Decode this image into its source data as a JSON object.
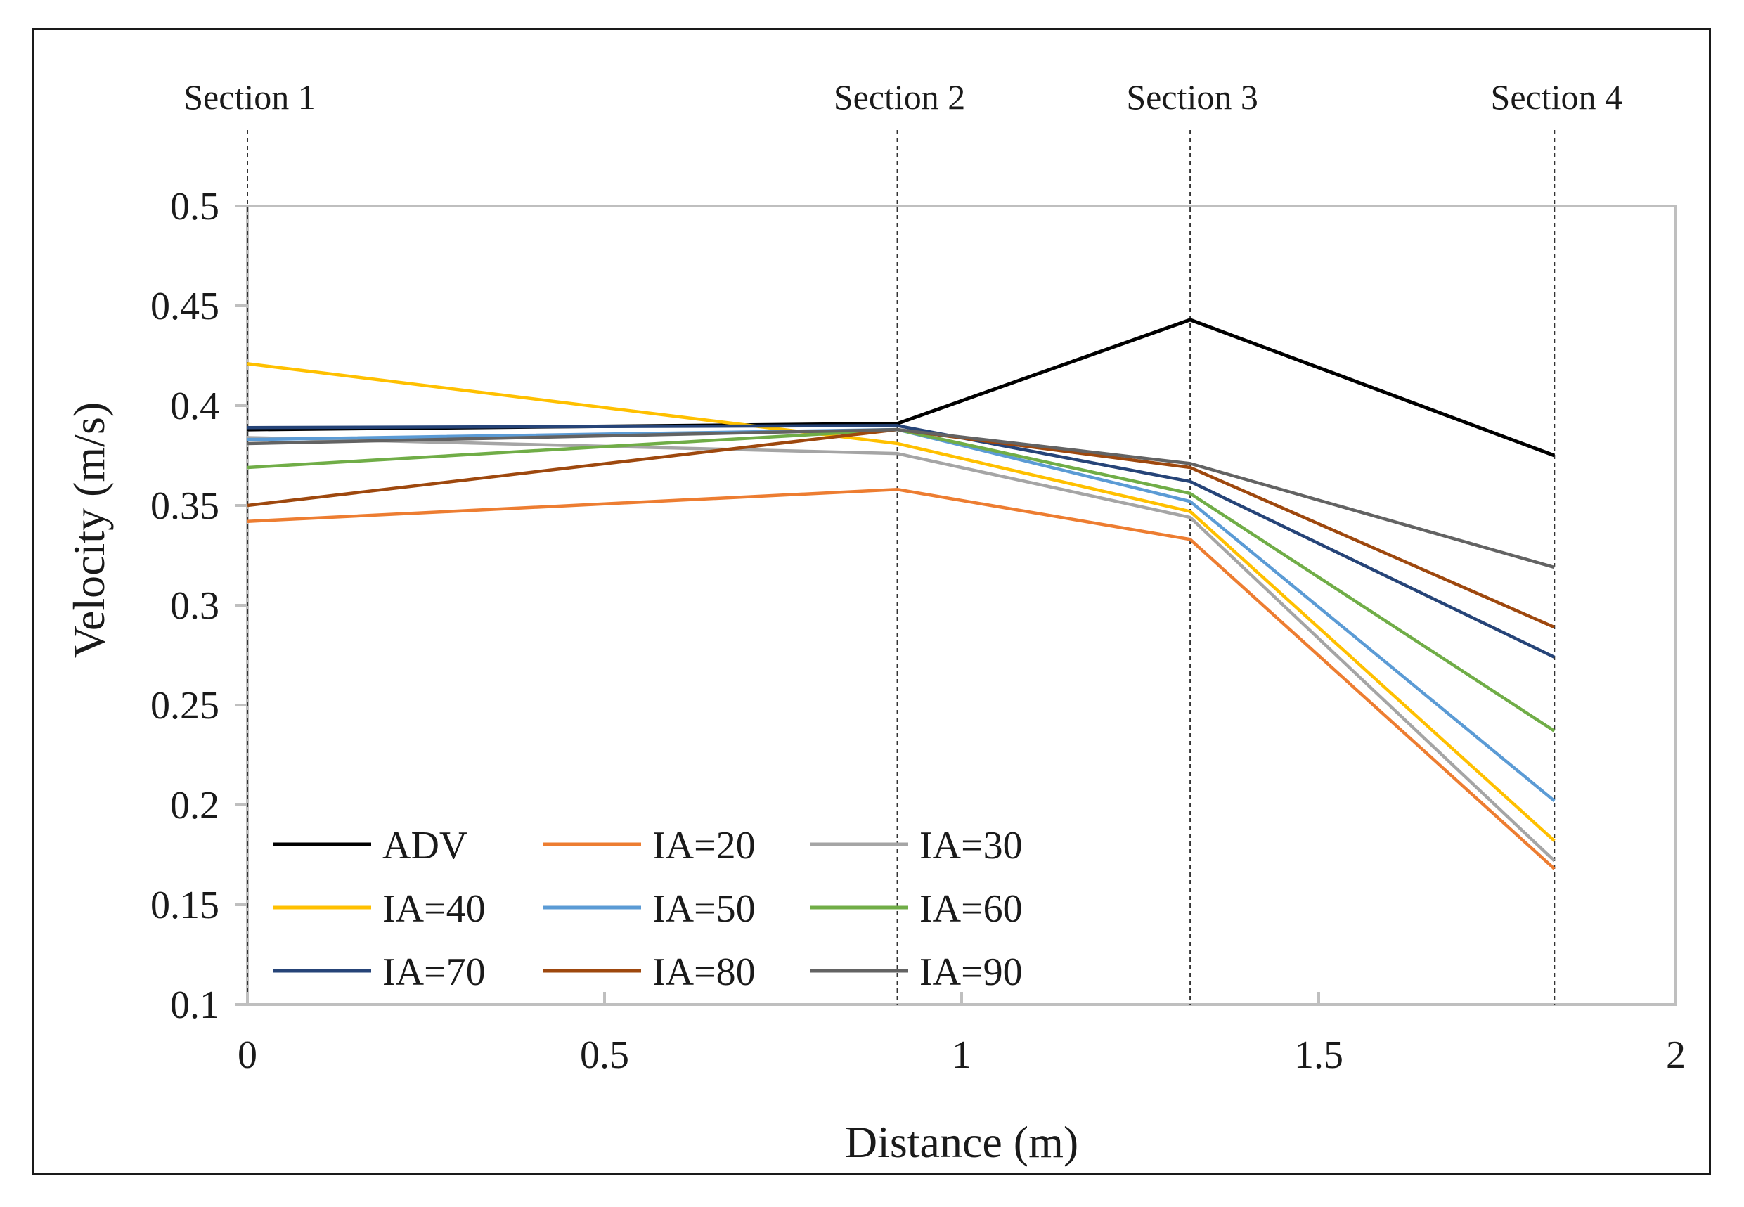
{
  "chart_data": {
    "type": "line",
    "xlabel": "Distance (m)",
    "ylabel": "Velocity (m/s)",
    "xlim": [
      0,
      2
    ],
    "ylim": [
      0.1,
      0.5
    ],
    "xticks": [
      "0",
      "0.5",
      "1",
      "1.5",
      "2"
    ],
    "yticks": [
      "0.1",
      "0.15",
      "0.2",
      "0.25",
      "0.3",
      "0.35",
      "0.4",
      "0.45",
      "0.5"
    ],
    "grid": false,
    "legend_position": "bottom-left",
    "sections": [
      {
        "label": "Section 1",
        "x": 0
      },
      {
        "label": "Section 2",
        "x": 0.91
      },
      {
        "label": "Section 3",
        "x": 1.32
      },
      {
        "label": "Section 4",
        "x": 1.83
      }
    ],
    "x": [
      0,
      0.91,
      1.32,
      1.83
    ],
    "series": [
      {
        "name": "ADV",
        "color": "#000000",
        "values": [
          0.388,
          0.391,
          0.443,
          0.375
        ]
      },
      {
        "name": "IA=20",
        "color": "#ed7d31",
        "values": [
          0.342,
          0.358,
          0.333,
          0.168
        ]
      },
      {
        "name": "IA=30",
        "color": "#a5a5a5",
        "values": [
          0.384,
          0.376,
          0.344,
          0.172
        ]
      },
      {
        "name": "IA=40",
        "color": "#ffc000",
        "values": [
          0.421,
          0.381,
          0.347,
          0.182
        ]
      },
      {
        "name": "IA=50",
        "color": "#5b9bd5",
        "values": [
          0.383,
          0.388,
          0.352,
          0.202
        ]
      },
      {
        "name": "IA=60",
        "color": "#70ad47",
        "values": [
          0.369,
          0.388,
          0.356,
          0.237
        ]
      },
      {
        "name": "IA=70",
        "color": "#264478",
        "values": [
          0.389,
          0.39,
          0.362,
          0.274
        ]
      },
      {
        "name": "IA=80",
        "color": "#9e480e",
        "values": [
          0.35,
          0.388,
          0.369,
          0.289
        ]
      },
      {
        "name": "IA=90",
        "color": "#636363",
        "values": [
          0.381,
          0.388,
          0.371,
          0.319
        ]
      }
    ]
  }
}
